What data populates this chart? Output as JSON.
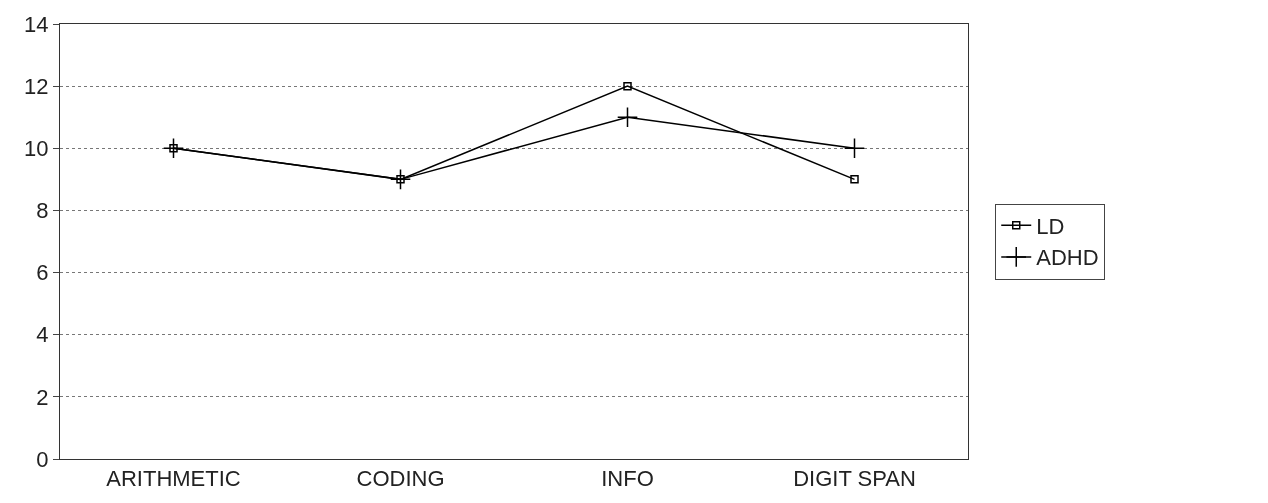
{
  "chart_data": {
    "type": "line",
    "categories": [
      "ARITHMETIC",
      "CODING",
      "INFO",
      "DIGIT SPAN"
    ],
    "series": [
      {
        "name": "LD",
        "color": "#000000",
        "values": [
          10,
          9,
          12,
          9
        ],
        "marker": "square"
      },
      {
        "name": "ADHD",
        "color": "#000000",
        "values": [
          10,
          9,
          11,
          10
        ],
        "marker": "cross"
      }
    ],
    "ylim": [
      0,
      14
    ],
    "yticks": [
      0,
      2,
      4,
      6,
      8,
      10,
      12,
      14
    ],
    "grid": "y",
    "legend": "right",
    "line_style": "solid"
  }
}
